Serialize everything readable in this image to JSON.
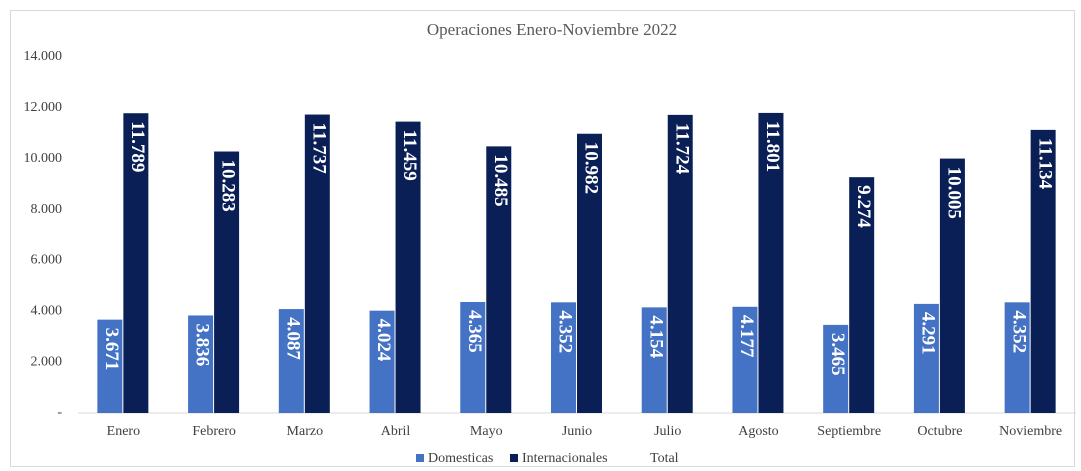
{
  "chart_data": {
    "type": "bar",
    "title": "Operaciones Enero-Noviembre 2022",
    "categories": [
      "Enero",
      "Febrero",
      "Marzo",
      "Abril",
      "Mayo",
      "Junio",
      "Julio",
      "Agosto",
      "Septiembre",
      "Octubre",
      "Noviembre"
    ],
    "series": [
      {
        "name": "Domesticas",
        "color": "#4472c4",
        "values": [
          3671,
          3836,
          4087,
          4024,
          4365,
          4352,
          4154,
          4177,
          3465,
          4291,
          4352
        ],
        "value_labels": [
          "3.671",
          "3.836",
          "4.087",
          "4.024",
          "4.365",
          "4.352",
          "4.154",
          "4.177",
          "3.465",
          "4.291",
          "4.352"
        ]
      },
      {
        "name": "Internacionales",
        "color": "#0a1f55",
        "values": [
          11789,
          10283,
          11737,
          11459,
          10485,
          10982,
          11724,
          11801,
          9274,
          10005,
          11134
        ],
        "value_labels": [
          "11.789",
          "10.283",
          "11.737",
          "11.459",
          "10.485",
          "10.982",
          "11.724",
          "11.801",
          "9.274",
          "10.005",
          "11.134"
        ]
      },
      {
        "name": "Total",
        "values": [
          null,
          null,
          null,
          null,
          null,
          null,
          null,
          null,
          null,
          null,
          null
        ]
      }
    ],
    "ylim": [
      0,
      14000
    ],
    "yticks": [
      {
        "value": 0,
        "label": "-"
      },
      {
        "value": 2000,
        "label": "2.000"
      },
      {
        "value": 4000,
        "label": "4.000"
      },
      {
        "value": 6000,
        "label": "6.000"
      },
      {
        "value": 8000,
        "label": "8.000"
      },
      {
        "value": 10000,
        "label": "10.000"
      },
      {
        "value": 12000,
        "label": "12.000"
      },
      {
        "value": 14000,
        "label": "14.000"
      }
    ],
    "grid": false
  }
}
